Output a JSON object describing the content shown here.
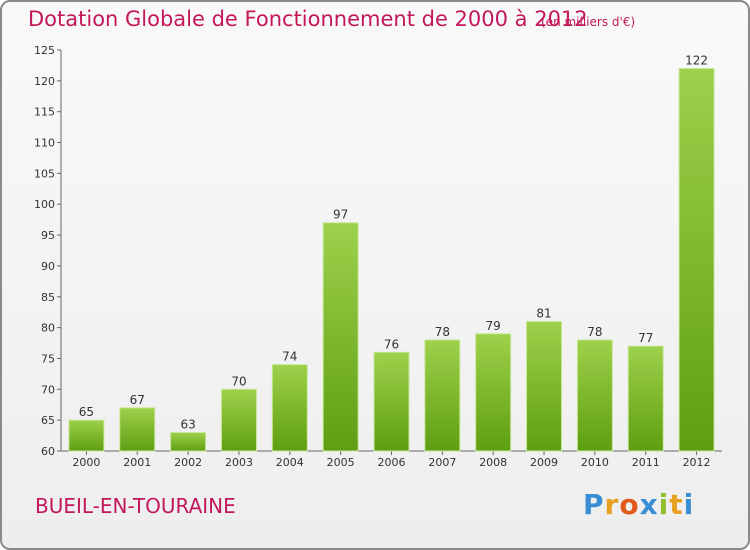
{
  "title": "Dotation Globale de Fonctionnement de 2000 à 2012",
  "subtitle": "(en milliers d'€)",
  "commune": "BUEIL-EN-TOURAINE",
  "logo": {
    "text": "Proxiti",
    "letter_colors": [
      "#3a8fd4",
      "#e8a020",
      "#e05a1a",
      "#3a8fd4",
      "#8fbf2a",
      "#e8a020",
      "#3a8fd4"
    ]
  },
  "colors": {
    "title": "#c2185b",
    "bar_top": "#9ed14b",
    "bar_bottom": "#5e9e12",
    "axis": "#666666",
    "grid": "#dddddd"
  },
  "chart_data": {
    "type": "bar",
    "title": "Dotation Globale de Fonctionnement de 2000 à 2012",
    "subtitle": "(en milliers d'€)",
    "xlabel": "",
    "ylabel": "",
    "categories": [
      "2000",
      "2001",
      "2002",
      "2003",
      "2004",
      "2005",
      "2006",
      "2007",
      "2008",
      "2009",
      "2010",
      "2011",
      "2012"
    ],
    "values": [
      65,
      67,
      63,
      70,
      74,
      97,
      76,
      78,
      79,
      81,
      78,
      77,
      122
    ],
    "ylim": [
      60,
      125
    ],
    "yticks": [
      60,
      65,
      70,
      75,
      80,
      85,
      90,
      95,
      100,
      105,
      110,
      115,
      120,
      125
    ],
    "data_labels": true,
    "grid": false,
    "legend": "none"
  }
}
